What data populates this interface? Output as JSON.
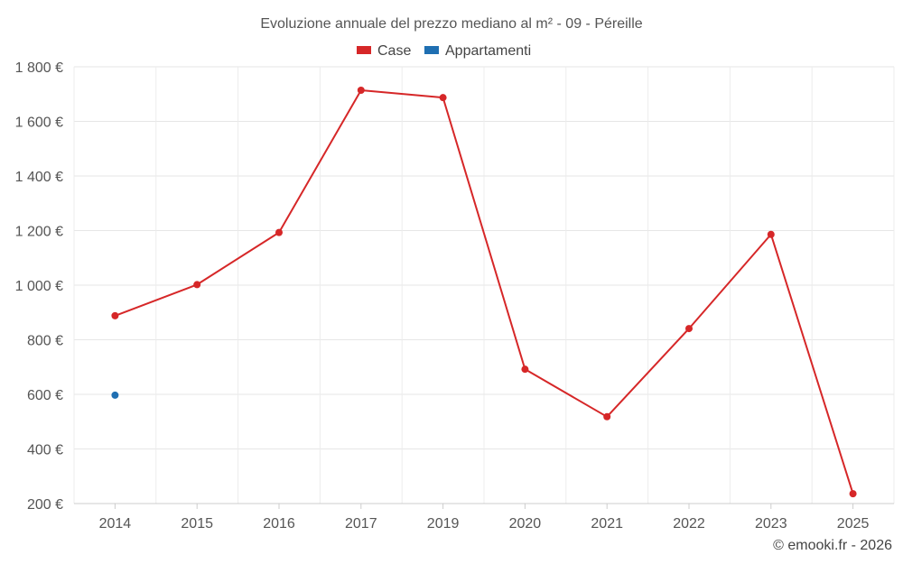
{
  "chart_data": {
    "type": "line",
    "title": "Evoluzione annuale del prezzo mediano al m² - 09 - Péreille",
    "categories": [
      "2014",
      "2015",
      "2016",
      "2017",
      "2019",
      "2020",
      "2021",
      "2022",
      "2023",
      "2025"
    ],
    "series": [
      {
        "name": "Case",
        "color": "#d62728",
        "values": [
          888,
          1002,
          1193,
          1714,
          1687,
          692,
          518,
          841,
          1186,
          236
        ]
      },
      {
        "name": "Appartamenti",
        "color": "#1f6fb2",
        "values": [
          597,
          null,
          null,
          null,
          null,
          null,
          null,
          null,
          null,
          null
        ]
      }
    ],
    "ylim": [
      200,
      1800
    ],
    "yticks": [
      200,
      400,
      600,
      800,
      1000,
      1200,
      1400,
      1600,
      1800
    ],
    "ytick_labels": [
      "200 €",
      "400 €",
      "600 €",
      "800 €",
      "1 000 €",
      "1 200 €",
      "1 400 €",
      "1 600 €",
      "1 800 €"
    ],
    "grid": true,
    "legend_position": "top-center"
  },
  "credit": "© emooki.fr - 2026"
}
